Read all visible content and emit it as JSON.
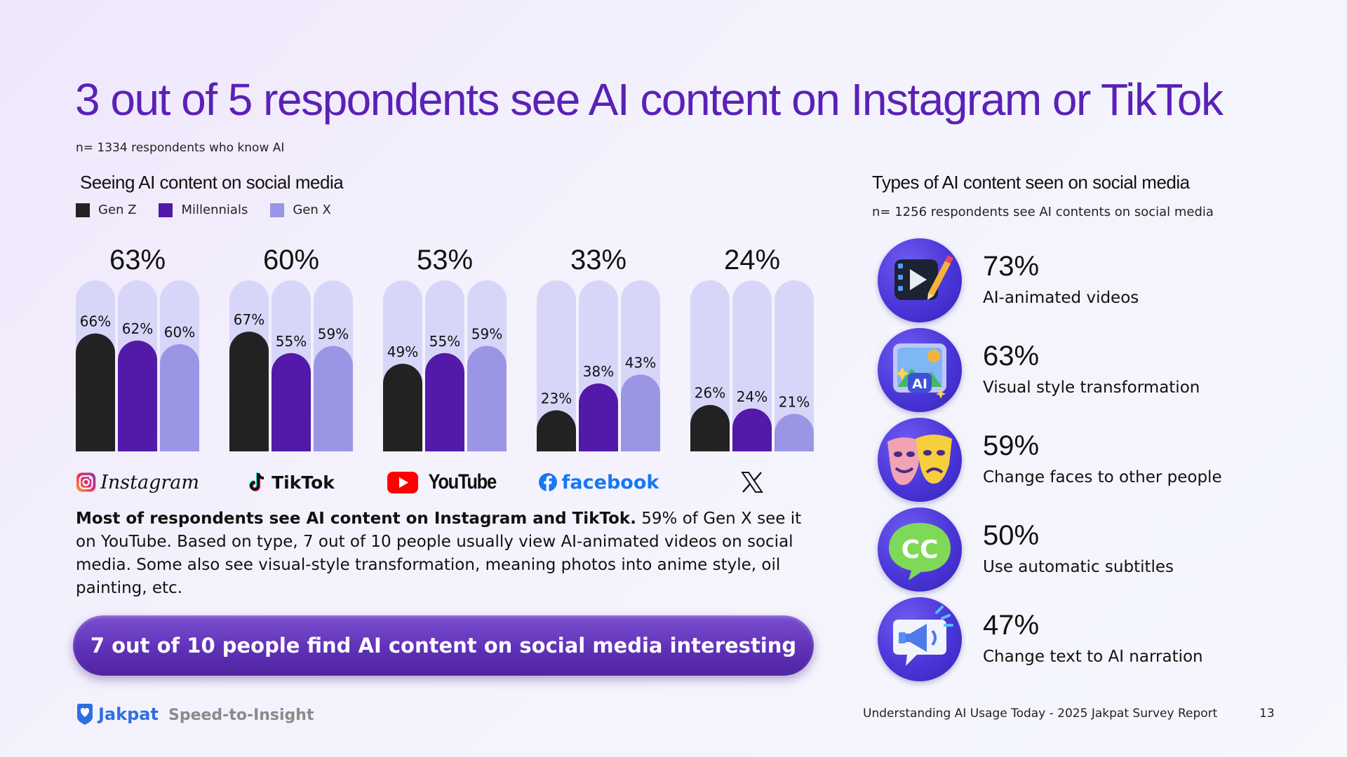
{
  "title": "3 out of 5 respondents see AI content on Instagram or TikTok",
  "sample_note": "n= 1334 respondents who know AI",
  "colors": {
    "gen_z": "#222222",
    "millennials": "#5319a9",
    "gen_x": "#9b95e6",
    "track": "#d8d6f8",
    "title": "#5a21b6"
  },
  "chart_data": {
    "type": "bar",
    "title": "Seeing AI content on social media",
    "categories": [
      "Instagram",
      "TikTok",
      "YouTube",
      "facebook",
      "X"
    ],
    "totals": [
      "63%",
      "60%",
      "53%",
      "33%",
      "24%"
    ],
    "series": [
      {
        "name": "Gen Z",
        "values": [
          66,
          67,
          49,
          23,
          26
        ]
      },
      {
        "name": "Millennials",
        "values": [
          62,
          55,
          55,
          38,
          24
        ]
      },
      {
        "name": "Gen X",
        "values": [
          60,
          59,
          59,
          43,
          21
        ]
      }
    ],
    "ylim": [
      0,
      100
    ],
    "legend_position": "top-left"
  },
  "platforms": [
    "Instagram",
    "TikTok",
    "YouTube",
    "facebook"
  ],
  "body": {
    "bold": "Most of respondents see AI content on Instagram and TikTok.",
    "rest": " 59% of Gen X see it on YouTube. Based on type, 7 out of 10 people usually view AI-animated videos on social media. Some also see visual-style transformation, meaning photos into anime style, oil painting, etc."
  },
  "callout": "7 out of 10 people find AI content on social media interesting",
  "types": {
    "title": "Types of AI content seen on social media",
    "note": "n= 1256 respondents see AI contents on social media",
    "items": [
      {
        "pct": "73%",
        "label": "AI-animated videos",
        "icon": "video-edit-icon"
      },
      {
        "pct": "63%",
        "label": "Visual style transformation",
        "icon": "ai-image-icon",
        "badge": "AI"
      },
      {
        "pct": "59%",
        "label": "Change faces to other people",
        "icon": "masks-icon"
      },
      {
        "pct": "50%",
        "label": "Use automatic subtitles",
        "icon": "cc-icon",
        "badge": "CC"
      },
      {
        "pct": "47%",
        "label": "Change text to AI narration",
        "icon": "megaphone-icon"
      }
    ]
  },
  "footer": {
    "brand": "Jakpat",
    "tagline": "Speed-to-Insight",
    "report": "Understanding AI Usage Today - 2025 Jakpat Survey Report",
    "page": "13"
  }
}
